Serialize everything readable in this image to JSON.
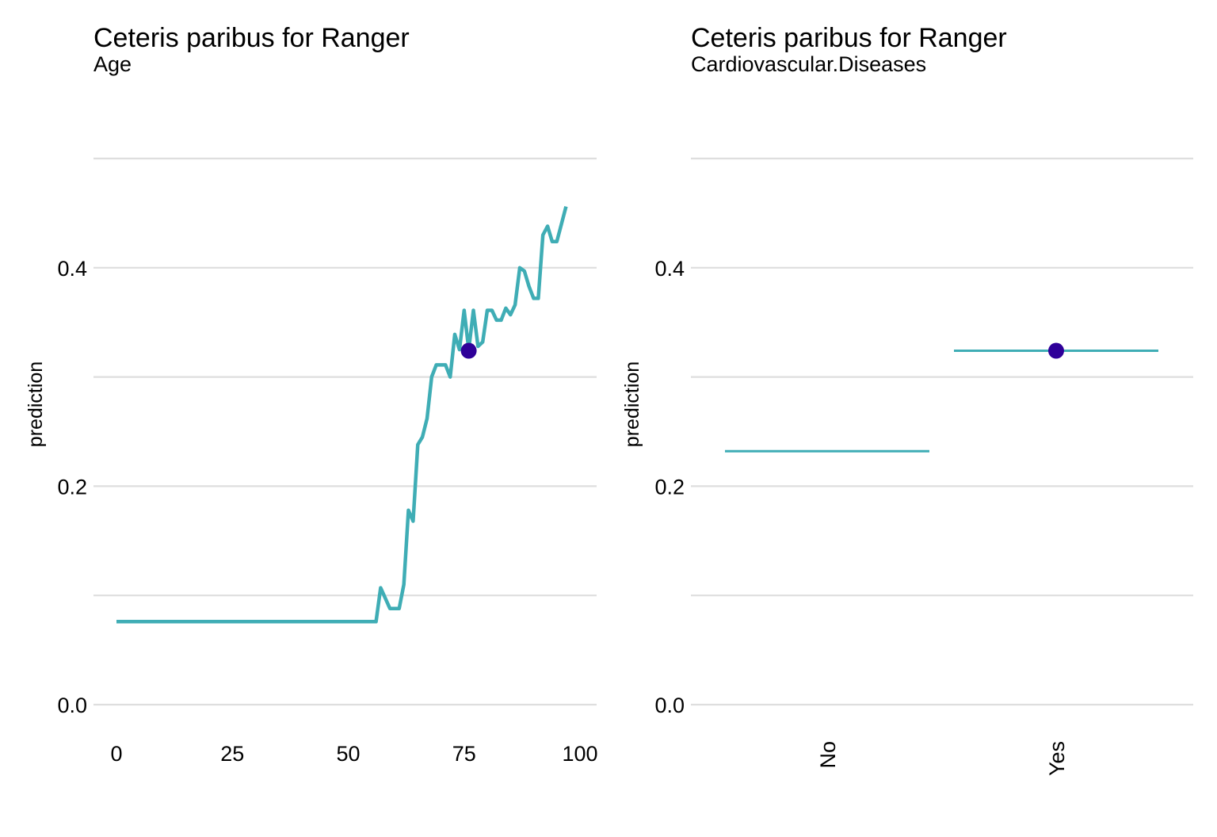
{
  "chart_data": [
    {
      "type": "line",
      "title": "Ceteris paribus for Ranger",
      "subtitle": "Age",
      "xlabel": "",
      "ylabel": "prediction",
      "xlim": [
        0,
        100
      ],
      "ylim": [
        0,
        0.5
      ],
      "x_ticks": [
        "0",
        "25",
        "50",
        "75",
        "100"
      ],
      "y_ticks": [
        "0.0",
        "0.2",
        "0.4"
      ],
      "grid": true,
      "line_color": "#3fadb5",
      "point_color": "#2f0099",
      "x": [
        0,
        56,
        57,
        59,
        61,
        62,
        63,
        64,
        65,
        66,
        67,
        68,
        69,
        70,
        71,
        72,
        73,
        74,
        75,
        76,
        77,
        78,
        79,
        80,
        81,
        82,
        83,
        84,
        85,
        86,
        87,
        88,
        89,
        90,
        91,
        92,
        93,
        94,
        95,
        96,
        97
      ],
      "y": [
        0.076,
        0.076,
        0.107,
        0.088,
        0.088,
        0.11,
        0.178,
        0.168,
        0.238,
        0.245,
        0.262,
        0.3,
        0.311,
        0.311,
        0.311,
        0.3,
        0.339,
        0.325,
        0.361,
        0.325,
        0.361,
        0.328,
        0.332,
        0.361,
        0.361,
        0.352,
        0.352,
        0.363,
        0.357,
        0.366,
        0.4,
        0.397,
        0.383,
        0.372,
        0.372,
        0.43,
        0.438,
        0.424,
        0.424,
        0.44,
        0.456
      ],
      "observation": {
        "x": 76,
        "y": 0.324
      }
    },
    {
      "type": "line",
      "title": "Ceteris paribus for Ranger",
      "subtitle": "Cardiovascular.Diseases",
      "xlabel": "",
      "ylabel": "prediction",
      "ylim": [
        0,
        0.5
      ],
      "categories": [
        "No",
        "Yes"
      ],
      "values": [
        0.232,
        0.324
      ],
      "y_ticks": [
        "0.0",
        "0.2",
        "0.4"
      ],
      "grid": true,
      "line_color": "#3fadb5",
      "point_color": "#2f0099",
      "observation": {
        "category": "Yes",
        "y": 0.324
      }
    }
  ]
}
